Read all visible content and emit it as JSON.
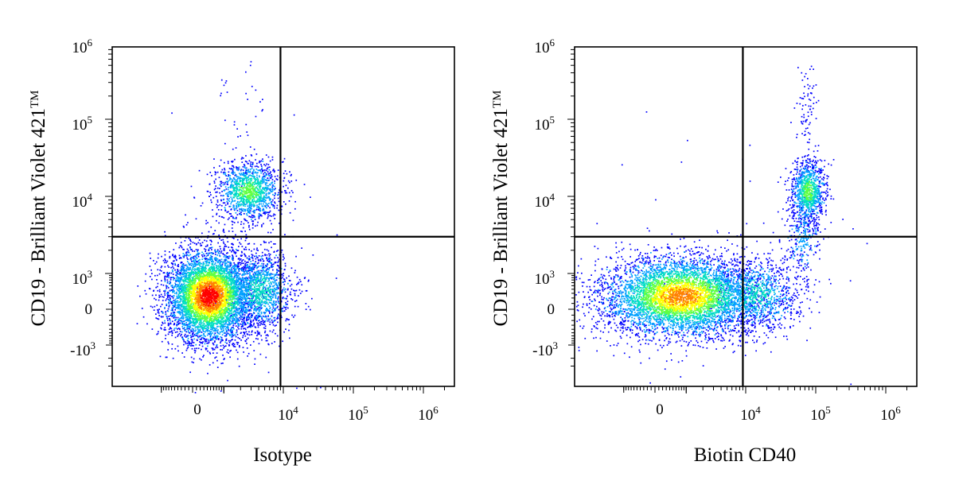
{
  "chart_data": [
    {
      "type": "scatter",
      "title": "",
      "xlabel": "Isotype",
      "ylabel": "CD19 - Brilliant Violet 421",
      "ylabel_mark": "TM",
      "x_scale": "biexponential",
      "y_scale": "biexponential",
      "xlim": [
        -2000,
        2000000
      ],
      "ylim": [
        -3000,
        1500000
      ],
      "x_ticks": [
        {
          "base": "0",
          "exp": ""
        },
        {
          "base": "10",
          "exp": "4"
        },
        {
          "base": "10",
          "exp": "5"
        },
        {
          "base": "10",
          "exp": "6"
        }
      ],
      "y_ticks": [
        {
          "base": "10",
          "exp": "6"
        },
        {
          "base": "10",
          "exp": "5"
        },
        {
          "base": "10",
          "exp": "4"
        },
        {
          "base": "10",
          "exp": "3"
        },
        {
          "base": "0",
          "exp": ""
        },
        {
          "base": "-10",
          "exp": "3"
        }
      ],
      "quadrant_gates": {
        "x": 9000,
        "y": 3000
      },
      "populations": [
        {
          "name": "",
          "x_center": 300,
          "y_center": 100,
          "density": "high"
        },
        {
          "name": "",
          "x_center": 1800,
          "y_center": 7000,
          "density": "medium"
        }
      ],
      "color_scale": [
        "#0000ff",
        "#00a0ff",
        "#00e0c0",
        "#60ff40",
        "#ffff00",
        "#ff8000",
        "#ff0000"
      ]
    },
    {
      "type": "scatter",
      "title": "",
      "xlabel": "Biotin CD40",
      "ylabel": "CD19 - Brilliant Violet 421",
      "ylabel_mark": "TM",
      "x_scale": "biexponential",
      "y_scale": "biexponential",
      "xlim": [
        -2000,
        2000000
      ],
      "ylim": [
        -3000,
        1500000
      ],
      "x_ticks": [
        {
          "base": "0",
          "exp": ""
        },
        {
          "base": "10",
          "exp": "4"
        },
        {
          "base": "10",
          "exp": "5"
        },
        {
          "base": "10",
          "exp": "6"
        }
      ],
      "y_ticks": [
        {
          "base": "10",
          "exp": "6"
        },
        {
          "base": "10",
          "exp": "5"
        },
        {
          "base": "10",
          "exp": "4"
        },
        {
          "base": "10",
          "exp": "3"
        },
        {
          "base": "0",
          "exp": ""
        },
        {
          "base": "-10",
          "exp": "3"
        }
      ],
      "quadrant_gates": {
        "x": 9000,
        "y": 3000
      },
      "populations": [
        {
          "name": "",
          "x_center": 500,
          "y_center": 100,
          "density": "high"
        },
        {
          "name": "",
          "x_center": 70000,
          "y_center": 8000,
          "density": "medium"
        }
      ],
      "color_scale": [
        "#0000ff",
        "#00a0ff",
        "#00e0c0",
        "#60ff40",
        "#ffff00",
        "#ff8000",
        "#ff0000"
      ]
    }
  ]
}
